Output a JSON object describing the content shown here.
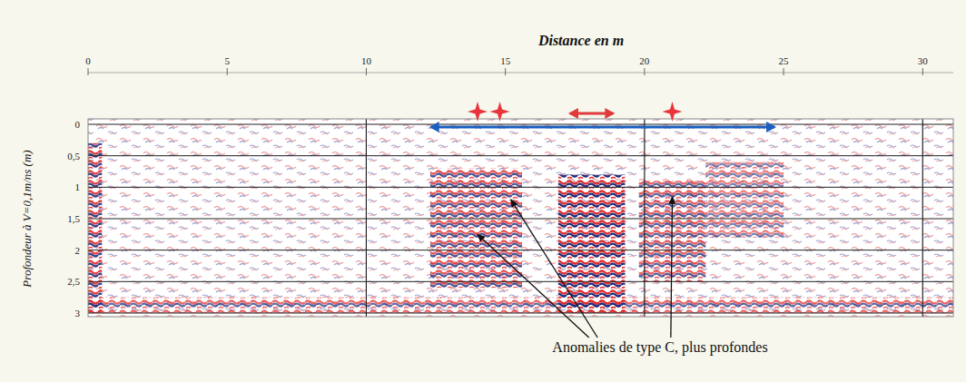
{
  "chart_data": {
    "type": "radargram",
    "title": "Distance en m",
    "y_label": "Profondeur à V=0,1m/ns (m)",
    "xlim": [
      0,
      31.1
    ],
    "xticks": [
      0,
      5,
      10,
      15,
      20,
      25,
      30
    ],
    "ylim": [
      0,
      3
    ],
    "yticks": [
      0,
      {
        "value": 0.5,
        "label": "0,5"
      },
      1,
      {
        "value": 1.5,
        "label": "1,5"
      },
      2,
      {
        "value": 2.5,
        "label": "2,5"
      },
      3
    ],
    "grid": true,
    "reflections": [
      {
        "x": [
          0,
          31.1
        ],
        "y": [
          0,
          3
        ],
        "amplitude": 0.45
      },
      {
        "x": [
          0,
          0.5
        ],
        "y": [
          0.3,
          3
        ],
        "amplitude": 0.9
      },
      {
        "x": [
          12.3,
          15.6
        ],
        "y": [
          0.7,
          2.6
        ],
        "amplitude": 0.8
      },
      {
        "x": [
          16.9,
          19.3
        ],
        "y": [
          0.8,
          3
        ],
        "amplitude": 1
      },
      {
        "x": [
          19.8,
          22.2
        ],
        "y": [
          0.9,
          2.5
        ],
        "amplitude": 0.75
      },
      {
        "x": [
          22.2,
          25
        ],
        "y": [
          0.6,
          1.8
        ],
        "amplitude": 0.6
      },
      {
        "x": [
          0,
          31.1
        ],
        "y": [
          2.75,
          3
        ],
        "amplitude": 0.7
      }
    ],
    "span": [
      12,
      25
    ],
    "markers": [
      14,
      14.8,
      21
    ],
    "zone": [
      17,
      19.2
    ],
    "annotation": {
      "text": "Anomalies de type C,  plus profondes",
      "points": [
        {
          "x": 14,
          "y": 1.75
        },
        {
          "x": 15.2,
          "y": 1.2
        },
        {
          "x": 21,
          "y": 1.15
        }
      ]
    }
  }
}
